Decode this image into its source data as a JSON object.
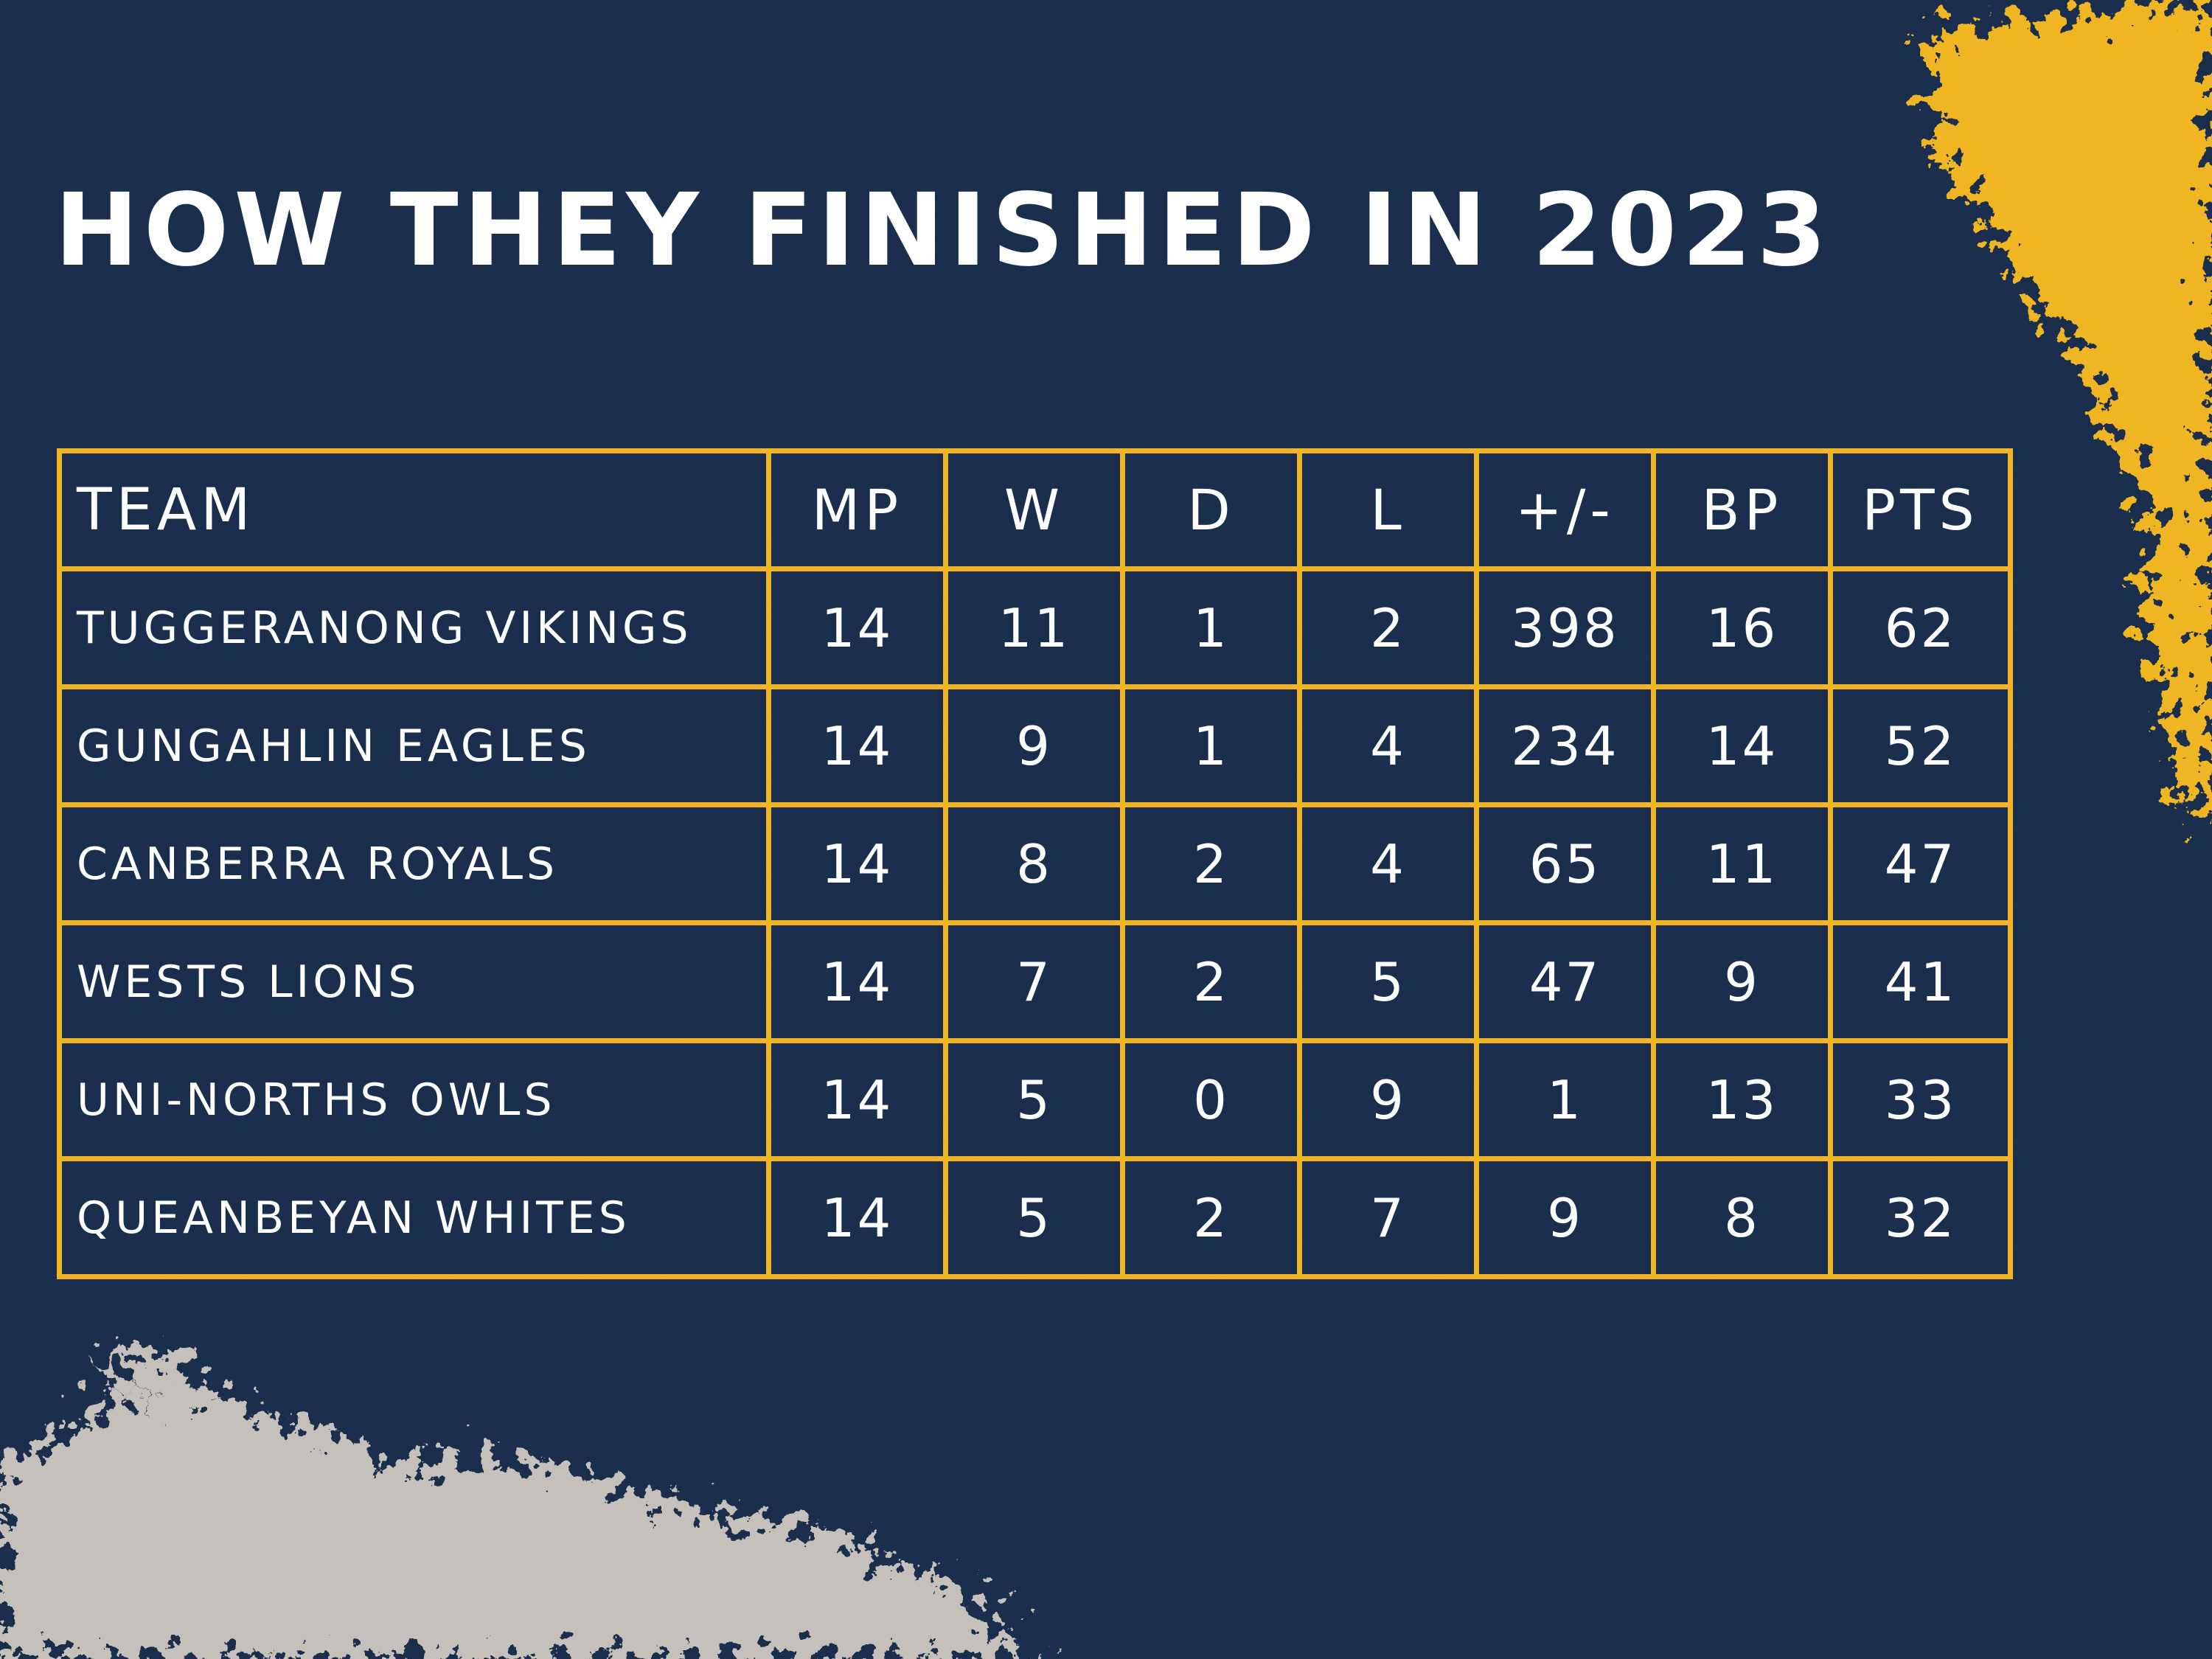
{
  "title": "HOW THEY FINISHED IN 2023",
  "colors": {
    "background": "#1b2f4f",
    "accent": "#f0b524",
    "text": "#ffffff",
    "splash": "#cfc8c0"
  },
  "table": {
    "columns": [
      "TEAM",
      "MP",
      "W",
      "D",
      "L",
      "+/-",
      "BP",
      "PTS"
    ],
    "rows": [
      {
        "team": "TUGGERANONG VIKINGS",
        "mp": "14",
        "w": "11",
        "d": "1",
        "l": "2",
        "diff": "398",
        "bp": "16",
        "pts": "62"
      },
      {
        "team": "GUNGAHLIN EAGLES",
        "mp": "14",
        "w": "9",
        "d": "1",
        "l": "4",
        "diff": "234",
        "bp": "14",
        "pts": "52"
      },
      {
        "team": "CANBERRA ROYALS",
        "mp": "14",
        "w": "8",
        "d": "2",
        "l": "4",
        "diff": "65",
        "bp": "11",
        "pts": "47"
      },
      {
        "team": "WESTS LIONS",
        "mp": "14",
        "w": "7",
        "d": "2",
        "l": "5",
        "diff": "47",
        "bp": "9",
        "pts": "41"
      },
      {
        "team": "UNI-NORTHS OWLS",
        "mp": "14",
        "w": "5",
        "d": "0",
        "l": "9",
        "diff": "1",
        "bp": "13",
        "pts": "33"
      },
      {
        "team": "QUEANBEYAN WHITES",
        "mp": "14",
        "w": "5",
        "d": "2",
        "l": "7",
        "diff": "9",
        "bp": "8",
        "pts": "32"
      }
    ]
  }
}
